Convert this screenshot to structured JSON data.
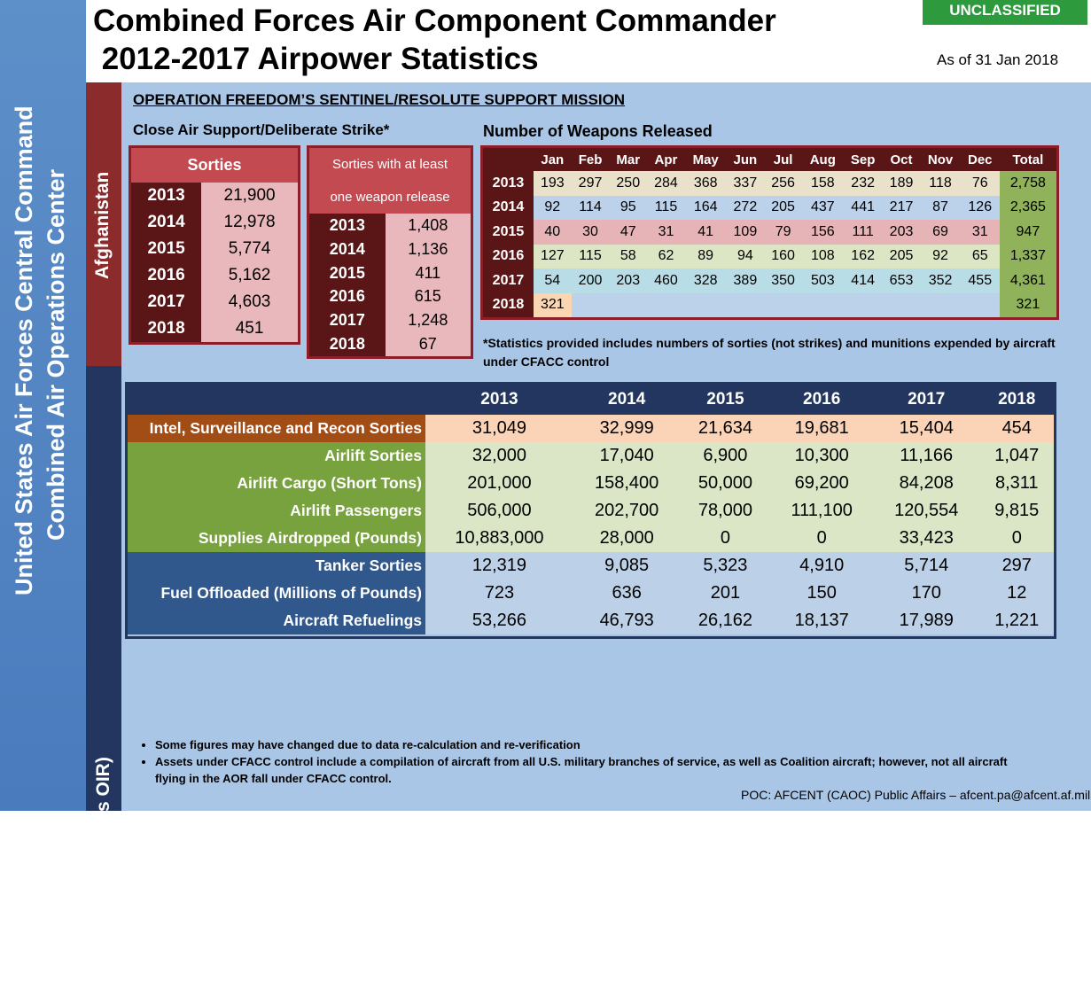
{
  "org": {
    "line1": "United States Air Forces Central Command",
    "line2": "Combined Air Operations Center"
  },
  "header": {
    "title_line1": "Combined Forces Air Component Commander",
    "title_line2": " 2012-2017 Airpower Statistics",
    "classification": "UNCLASSIFIED",
    "as_of": "As of 31 Jan 2018"
  },
  "sections": {
    "afghanistan": "Afghanistan",
    "combined": "Combined Data (minus OIR)"
  },
  "operation": "OPERATION FREEDOM’S SENTINEL/RESOLUTE SUPPORT MISSION",
  "cas_label": "Close Air Support/Deliberate  Strike*",
  "weapons_label": "Number of Weapons Released",
  "sorties": {
    "header": "Sorties",
    "rows": [
      {
        "year": "2013",
        "value": "21,900"
      },
      {
        "year": "2014",
        "value": "12,978"
      },
      {
        "year": "2015",
        "value": "5,774"
      },
      {
        "year": "2016",
        "value": "5,162"
      },
      {
        "year": "2017",
        "value": "4,603"
      },
      {
        "year": "2018",
        "value": "451"
      }
    ]
  },
  "sorties_weapon": {
    "header_line1": "Sorties with at least",
    "header_line2": "one weapon release",
    "rows": [
      {
        "year": "2013",
        "value": "1,408"
      },
      {
        "year": "2014",
        "value": "1,136"
      },
      {
        "year": "2015",
        "value": "411"
      },
      {
        "year": "2016",
        "value": "615"
      },
      {
        "year": "2017",
        "value": "1,248"
      },
      {
        "year": "2018",
        "value": "67"
      }
    ]
  },
  "weapons": {
    "columns": [
      "Jan",
      "Feb",
      "Mar",
      "Apr",
      "May",
      "Jun",
      "Jul",
      "Aug",
      "Sep",
      "Oct",
      "Nov",
      "Dec",
      "Total"
    ],
    "rows": [
      {
        "year": "2013",
        "values": [
          "193",
          "297",
          "250",
          "284",
          "368",
          "337",
          "256",
          "158",
          "232",
          "189",
          "118",
          "76"
        ],
        "total": "2,758"
      },
      {
        "year": "2014",
        "values": [
          "92",
          "114",
          "95",
          "115",
          "164",
          "272",
          "205",
          "437",
          "441",
          "217",
          "87",
          "126"
        ],
        "total": "2,365"
      },
      {
        "year": "2015",
        "values": [
          "40",
          "30",
          "47",
          "31",
          "41",
          "109",
          "79",
          "156",
          "111",
          "203",
          "69",
          "31"
        ],
        "total": "947"
      },
      {
        "year": "2016",
        "values": [
          "127",
          "115",
          "58",
          "62",
          "89",
          "94",
          "160",
          "108",
          "162",
          "205",
          "92",
          "65"
        ],
        "total": "1,337"
      },
      {
        "year": "2017",
        "values": [
          "54",
          "200",
          "203",
          "460",
          "328",
          "389",
          "350",
          "503",
          "414",
          "653",
          "352",
          "455"
        ],
        "total": "4,361"
      },
      {
        "year": "2018",
        "values": [
          "321",
          "",
          "",
          "",
          "",
          "",
          "",
          "",
          "",
          "",
          "",
          ""
        ],
        "total": "321"
      }
    ]
  },
  "stats_note": "*Statistics provided includes numbers of sorties (not strikes) and munitions expended by aircraft under CFACC control",
  "combined": {
    "years": [
      "2013",
      "2014",
      "2015",
      "2016",
      "2017",
      "2018"
    ],
    "rows": [
      {
        "label": "Intel, Surveillance and Recon Sorties",
        "values": [
          "31,049",
          "32,999",
          "21,634",
          "19,681",
          "15,404",
          "454"
        ]
      },
      {
        "label": "Airlift Sorties",
        "values": [
          "32,000",
          "17,040",
          "6,900",
          "10,300",
          "11,166",
          "1,047"
        ]
      },
      {
        "label": "Airlift Cargo (Short Tons)",
        "values": [
          "201,000",
          "158,400",
          "50,000",
          "69,200",
          "84,208",
          "8,311"
        ]
      },
      {
        "label": "Airlift Passengers",
        "values": [
          "506,000",
          "202,700",
          "78,000",
          "111,100",
          "120,554",
          "9,815"
        ]
      },
      {
        "label": "Supplies Airdropped (Pounds)",
        "values": [
          "10,883,000",
          "28,000",
          "0",
          "0",
          "33,423",
          "0"
        ]
      },
      {
        "label": "Tanker Sorties",
        "values": [
          "12,319",
          "9,085",
          "5,323",
          "4,910",
          "5,714",
          "297"
        ]
      },
      {
        "label": "Fuel Offloaded (Millions of Pounds)",
        "values": [
          "723",
          "636",
          "201",
          "150",
          "170",
          "12"
        ]
      },
      {
        "label": "Aircraft Refuelings",
        "values": [
          "53,266",
          "46,793",
          "26,162",
          "18,137",
          "17,989",
          "1,221"
        ]
      }
    ]
  },
  "bullets": [
    "Some figures may have changed due to data re-calculation and re-verification",
    "Assets under CFACC control include a compilation of aircraft from all U.S.  military branches of service, as well as Coalition aircraft; however, not all aircraft flying in the AOR fall under CFACC control."
  ],
  "poc": "POC:  AFCENT (CAOC) Public Affairs – afcent.pa@afcent.af.mil"
}
